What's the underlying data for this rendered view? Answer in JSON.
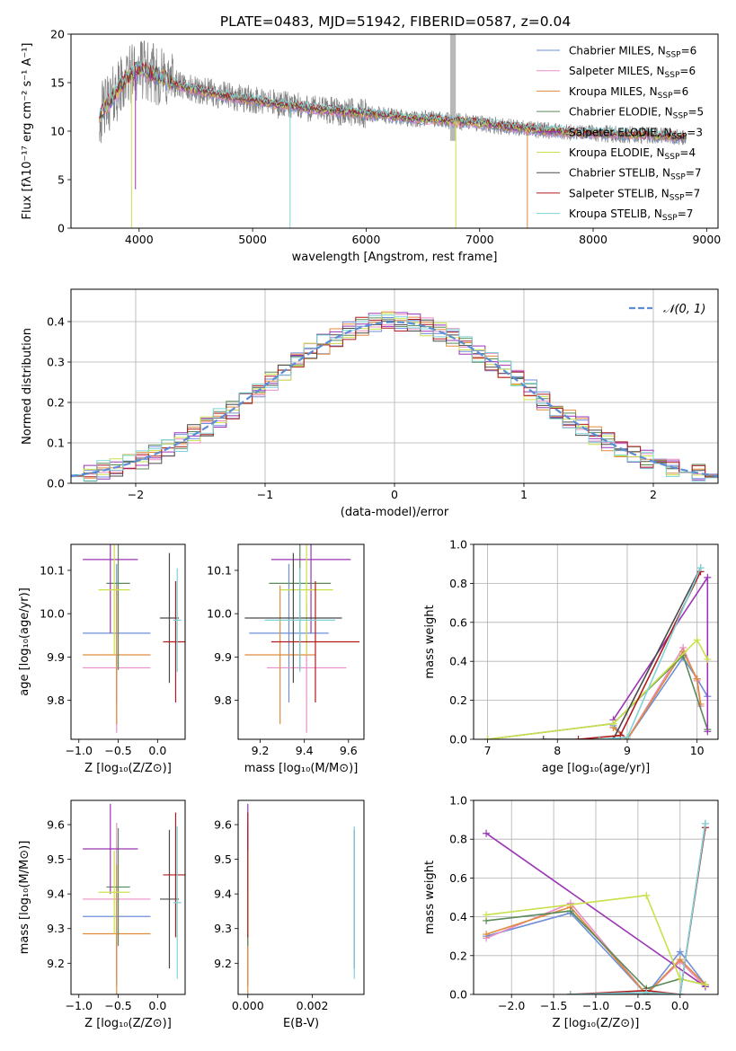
{
  "figure_title": "PLATE=0483, MJD=51942, FIBERID=0587, z=0.04",
  "colors": {
    "Chabrier MILES": "#6f8fd8",
    "Salpeter MILES": "#e98fc6",
    "Kroupa MILES": "#e08a3c",
    "Chabrier ELODIE": "#5a8a5a",
    "Salpeter ELODIE": "#9b35b5",
    "Kroupa ELODIE": "#c9e04a",
    "Chabrier STELIB": "#4a4a4a",
    "Salpeter STELIB": "#b01c1c",
    "Kroupa STELIB": "#7fd3d8",
    "data": "#808080",
    "gaussian": "#5b8dd6"
  },
  "chart_data": [
    {
      "id": "spectrum",
      "type": "line",
      "title": "PLATE=0483, MJD=51942, FIBERID=0587, z=0.04",
      "xlabel": "wavelength [Angstrom, rest frame]",
      "ylabel": "Flux [f_λ 10^-17 erg cm^-2 s^-1 A^-1]",
      "xlim": [
        3400,
        9100
      ],
      "ylim": [
        0,
        20
      ],
      "xticks": [
        4000,
        5000,
        6000,
        7000,
        8000,
        9000
      ],
      "yticks": [
        0,
        5,
        10,
        15,
        20
      ],
      "legend_position": "top-right",
      "legend": [
        {
          "name": "Chabrier MILES",
          "nssp": "6"
        },
        {
          "name": "Salpeter MILES",
          "nssp": "6"
        },
        {
          "name": "Kroupa MILES",
          "nssp": "6"
        },
        {
          "name": "Chabrier ELODIE",
          "nssp": "5"
        },
        {
          "name": "Salpeter ELODIE",
          "nssp": "3"
        },
        {
          "name": "Kroupa ELODIE",
          "nssp": "4"
        },
        {
          "name": "Chabrier STELIB",
          "nssp": "7"
        },
        {
          "name": "Salpeter STELIB",
          "nssp": "7"
        },
        {
          "name": "Kroupa STELIB",
          "nssp": "7"
        }
      ],
      "continuum": {
        "x": [
          3650,
          3700,
          3800,
          3900,
          4000,
          4100,
          4200,
          4400,
          4600,
          4800,
          5000,
          5200,
          5400,
          5600,
          5800,
          6000,
          6200,
          6400,
          6600,
          6800,
          7000,
          7200,
          7400,
          7600,
          7800,
          8000,
          8200,
          8400,
          8600,
          8800
        ],
        "y": [
          11.5,
          12.5,
          14.0,
          15.5,
          16.5,
          16.0,
          15.5,
          14.5,
          14.0,
          13.5,
          13.2,
          12.8,
          12.5,
          12.2,
          12.0,
          11.8,
          11.6,
          11.3,
          11.2,
          11.0,
          10.8,
          10.5,
          10.3,
          10.0,
          9.9,
          9.8,
          9.7,
          9.6,
          9.5,
          9.4
        ]
      }
    },
    {
      "id": "residuals",
      "type": "histogram",
      "xlabel": "(data-model)/error",
      "ylabel": "Normed distribution",
      "xlim": [
        -2.5,
        2.5
      ],
      "ylim": [
        0,
        0.48
      ],
      "xticks": [
        -2,
        -1,
        0,
        1,
        2
      ],
      "yticks": [
        0.0,
        0.1,
        0.2,
        0.3,
        0.4
      ],
      "grid": true,
      "legend_position": "top-right",
      "legend": "𝒩(0, 1)"
    },
    {
      "id": "age_vs_Z",
      "type": "errorbar",
      "xlabel": "Z [log10(Z/Z⊙)]",
      "ylabel": "age  [log10(age/yr)]",
      "xlim": [
        -1.1,
        0.35
      ],
      "ylim": [
        9.71,
        10.16
      ],
      "xticks": [
        -1.0,
        -0.5,
        0.0
      ],
      "yticks": [
        9.8,
        9.9,
        10.0,
        10.1
      ],
      "points": [
        {
          "model": "Chabrier MILES",
          "x": -0.52,
          "xerr": 0.43,
          "y": 9.955,
          "yerr": 0.16
        },
        {
          "model": "Salpeter MILES",
          "x": -0.52,
          "xerr": 0.43,
          "y": 9.875,
          "yerr": 0.15
        },
        {
          "model": "Kroupa MILES",
          "x": -0.52,
          "xerr": 0.43,
          "y": 9.905,
          "yerr": 0.16
        },
        {
          "model": "Chabrier ELODIE",
          "x": -0.5,
          "xerr": 0.15,
          "y": 10.07,
          "yerr": 0.2
        },
        {
          "model": "Salpeter ELODIE",
          "x": -0.6,
          "xerr": 0.35,
          "y": 10.125,
          "yerr": 0.17
        },
        {
          "model": "Kroupa ELODIE",
          "x": -0.55,
          "xerr": 0.2,
          "y": 10.055,
          "yerr": 0.15
        },
        {
          "model": "Chabrier STELIB",
          "x": 0.15,
          "xerr": 0.12,
          "y": 9.99,
          "yerr": 0.15
        },
        {
          "model": "Salpeter STELIB",
          "x": 0.23,
          "xerr": 0.16,
          "y": 9.935,
          "yerr": 0.14
        },
        {
          "model": "Kroupa STELIB",
          "x": 0.25,
          "xerr": 0.05,
          "y": 9.985,
          "yerr": 0.12
        }
      ]
    },
    {
      "id": "age_vs_mass",
      "type": "errorbar",
      "xlabel": "mass [log10(M/M⊙)]",
      "ylabel": "",
      "xlim": [
        9.1,
        9.67
      ],
      "ylim": [
        9.71,
        10.16
      ],
      "xticks": [
        9.2,
        9.4,
        9.6
      ],
      "yticks": [
        9.8,
        9.9,
        10.0,
        10.1
      ],
      "points": [
        {
          "model": "Chabrier MILES",
          "x": 9.33,
          "xerr": 0.18,
          "y": 9.955,
          "yerr": 0.16
        },
        {
          "model": "Salpeter MILES",
          "x": 9.41,
          "xerr": 0.18,
          "y": 9.875,
          "yerr": 0.15
        },
        {
          "model": "Kroupa MILES",
          "x": 9.29,
          "xerr": 0.16,
          "y": 9.905,
          "yerr": 0.16
        },
        {
          "model": "Chabrier ELODIE",
          "x": 9.38,
          "xerr": 0.14,
          "y": 10.07,
          "yerr": 0.2
        },
        {
          "model": "Salpeter ELODIE",
          "x": 9.43,
          "xerr": 0.18,
          "y": 10.125,
          "yerr": 0.17
        },
        {
          "model": "Kroupa ELODIE",
          "x": 9.41,
          "xerr": 0.12,
          "y": 10.055,
          "yerr": 0.15
        },
        {
          "model": "Chabrier STELIB",
          "x": 9.35,
          "xerr": 0.22,
          "y": 9.99,
          "yerr": 0.15
        },
        {
          "model": "Salpeter STELIB",
          "x": 9.45,
          "xerr": 0.2,
          "y": 9.935,
          "yerr": 0.14
        },
        {
          "model": "Kroupa STELIB",
          "x": 9.38,
          "xerr": 0.16,
          "y": 9.985,
          "yerr": 0.12
        }
      ]
    },
    {
      "id": "weight_vs_age",
      "type": "line",
      "xlabel": "age  [log10(age/yr)]",
      "ylabel": "mass weight",
      "xlim": [
        6.8,
        10.3
      ],
      "ylim": [
        0,
        1.0
      ],
      "xticks": [
        7,
        8,
        9,
        10
      ],
      "yticks": [
        0.0,
        0.2,
        0.4,
        0.6,
        0.8,
        1.0
      ],
      "grid": true,
      "series": [
        {
          "model": "Chabrier MILES",
          "x": [
            8.8,
            9.0,
            9.8,
            10.0,
            10.15
          ],
          "y": [
            0.07,
            0.0,
            0.42,
            0.31,
            0.22
          ]
        },
        {
          "model": "Salpeter MILES",
          "x": [
            8.8,
            9.0,
            9.8,
            10.0,
            10.05
          ],
          "y": [
            0.06,
            0.0,
            0.47,
            0.3,
            0.17
          ]
        },
        {
          "model": "Kroupa MILES",
          "x": [
            8.8,
            9.0,
            9.8,
            10.0,
            10.05
          ],
          "y": [
            0.06,
            0.0,
            0.45,
            0.31,
            0.18
          ]
        },
        {
          "model": "Chabrier ELODIE",
          "x": [
            7.0,
            8.8,
            9.8,
            10.15
          ],
          "y": [
            0.0,
            0.08,
            0.43,
            0.05
          ]
        },
        {
          "model": "Salpeter ELODIE",
          "x": [
            8.8,
            10.15,
            10.15
          ],
          "y": [
            0.1,
            0.83,
            0.04
          ]
        },
        {
          "model": "Kroupa ELODIE",
          "x": [
            7.0,
            8.8,
            10.0,
            10.15
          ],
          "y": [
            0.0,
            0.08,
            0.51,
            0.41
          ]
        },
        {
          "model": "Chabrier STELIB",
          "x": [
            7.8,
            8.8,
            10.05
          ],
          "y": [
            0.0,
            0.0,
            0.88
          ]
        },
        {
          "model": "Salpeter STELIB",
          "x": [
            8.3,
            8.9,
            10.05
          ],
          "y": [
            0.0,
            0.02,
            0.86
          ]
        },
        {
          "model": "Kroupa STELIB",
          "x": [
            8.6,
            9.0,
            10.05
          ],
          "y": [
            0.0,
            0.01,
            0.88
          ]
        }
      ]
    },
    {
      "id": "mass_vs_Z",
      "type": "errorbar",
      "xlabel": "Z [log10(Z/Z⊙)]",
      "ylabel": "mass [log10(M/M⊙)]",
      "xlim": [
        -1.1,
        0.35
      ],
      "ylim": [
        9.11,
        9.67
      ],
      "xticks": [
        -1.0,
        -0.5,
        0.0
      ],
      "yticks": [
        9.2,
        9.3,
        9.4,
        9.5,
        9.6
      ],
      "points": [
        {
          "model": "Chabrier MILES",
          "x": -0.52,
          "xerr": 0.43,
          "y": 9.335,
          "yerr": 0.2
        },
        {
          "model": "Salpeter MILES",
          "x": -0.52,
          "xerr": 0.43,
          "y": 9.385,
          "yerr": 0.22
        },
        {
          "model": "Kroupa MILES",
          "x": -0.52,
          "xerr": 0.43,
          "y": 9.285,
          "yerr": 0.2
        },
        {
          "model": "Chabrier ELODIE",
          "x": -0.5,
          "xerr": 0.15,
          "y": 9.42,
          "yerr": 0.17
        },
        {
          "model": "Salpeter ELODIE",
          "x": -0.6,
          "xerr": 0.35,
          "y": 9.53,
          "yerr": 0.13
        },
        {
          "model": "Kroupa ELODIE",
          "x": -0.55,
          "xerr": 0.2,
          "y": 9.405,
          "yerr": 0.12
        },
        {
          "model": "Chabrier STELIB",
          "x": 0.15,
          "xerr": 0.12,
          "y": 9.385,
          "yerr": 0.2
        },
        {
          "model": "Salpeter STELIB",
          "x": 0.23,
          "xerr": 0.16,
          "y": 9.455,
          "yerr": 0.18
        },
        {
          "model": "Kroupa STELIB",
          "x": 0.25,
          "xerr": 0.05,
          "y": 9.375,
          "yerr": 0.22
        }
      ]
    },
    {
      "id": "mass_vs_ebv",
      "type": "errorbar",
      "xlabel": "E(B-V)",
      "ylabel": "",
      "xlim": [
        -0.0003,
        0.0036
      ],
      "ylim": [
        9.11,
        9.67
      ],
      "xticks": [
        0.0,
        0.002
      ],
      "xtick_labels": [
        "0.000",
        "0.002"
      ],
      "yticks": [
        9.2,
        9.3,
        9.4,
        9.5,
        9.6
      ],
      "points": [
        {
          "model": "Chabrier MILES",
          "x": 0.0,
          "y": 9.335,
          "yerr": 0.2
        },
        {
          "model": "Salpeter MILES",
          "x": 0.0,
          "y": 9.385,
          "yerr": 0.22
        },
        {
          "model": "Kroupa MILES",
          "x": 0.0,
          "y": 9.285,
          "yerr": 0.2
        },
        {
          "model": "Chabrier ELODIE",
          "x": 0.0,
          "y": 9.42,
          "yerr": 0.17
        },
        {
          "model": "Salpeter ELODIE",
          "x": 0.0,
          "y": 9.53,
          "yerr": 0.13
        },
        {
          "model": "Kroupa ELODIE",
          "x": 0.0,
          "y": 9.405,
          "yerr": 0.12
        },
        {
          "model": "Chabrier STELIB",
          "x": 0.0033,
          "y": 9.385,
          "yerr": 0.2
        },
        {
          "model": "Salpeter STELIB",
          "x": 0.0,
          "y": 9.455,
          "yerr": 0.18
        },
        {
          "model": "Kroupa STELIB",
          "x": 0.0033,
          "y": 9.375,
          "yerr": 0.22
        }
      ]
    },
    {
      "id": "weight_vs_Z",
      "type": "line",
      "xlabel": "Z [log10(Z/Z⊙)]",
      "ylabel": "mass weight",
      "xlim": [
        -2.45,
        0.45
      ],
      "ylim": [
        0,
        1.0
      ],
      "xticks": [
        -2.0,
        -1.5,
        -1.0,
        -0.5,
        0.0
      ],
      "yticks": [
        0.0,
        0.2,
        0.4,
        0.6,
        0.8,
        1.0
      ],
      "grid": true,
      "series": [
        {
          "model": "Chabrier MILES",
          "x": [
            -2.3,
            -1.3,
            -0.4,
            0.0,
            0.3
          ],
          "y": [
            0.3,
            0.42,
            0.0,
            0.22,
            0.05
          ]
        },
        {
          "model": "Salpeter MILES",
          "x": [
            -2.3,
            -1.3,
            -0.4,
            0.0,
            0.3
          ],
          "y": [
            0.29,
            0.47,
            0.0,
            0.17,
            0.04
          ]
        },
        {
          "model": "Kroupa MILES",
          "x": [
            -2.3,
            -1.3,
            -0.4,
            0.0,
            0.3
          ],
          "y": [
            0.31,
            0.45,
            0.0,
            0.18,
            0.05
          ]
        },
        {
          "model": "Chabrier ELODIE",
          "x": [
            -2.3,
            -1.3,
            -0.4,
            0.0,
            0.3
          ],
          "y": [
            0.38,
            0.43,
            0.03,
            0.08,
            0.05
          ]
        },
        {
          "model": "Salpeter ELODIE",
          "x": [
            -2.3,
            0.3
          ],
          "y": [
            0.83,
            0.04
          ]
        },
        {
          "model": "Kroupa ELODIE",
          "x": [
            -2.3,
            -0.4,
            0.0,
            0.3
          ],
          "y": [
            0.41,
            0.51,
            0.08,
            0.05
          ]
        },
        {
          "model": "Chabrier STELIB",
          "x": [
            -1.3,
            -0.4,
            0.0,
            0.3
          ],
          "y": [
            0.0,
            0.0,
            0.0,
            0.88
          ]
        },
        {
          "model": "Salpeter STELIB",
          "x": [
            -1.3,
            -0.4,
            0.0,
            0.3
          ],
          "y": [
            0.0,
            0.02,
            0.0,
            0.86
          ]
        },
        {
          "model": "Kroupa STELIB",
          "x": [
            -1.3,
            -0.4,
            0.0,
            0.3
          ],
          "y": [
            0.0,
            0.01,
            0.0,
            0.88
          ]
        }
      ]
    }
  ]
}
